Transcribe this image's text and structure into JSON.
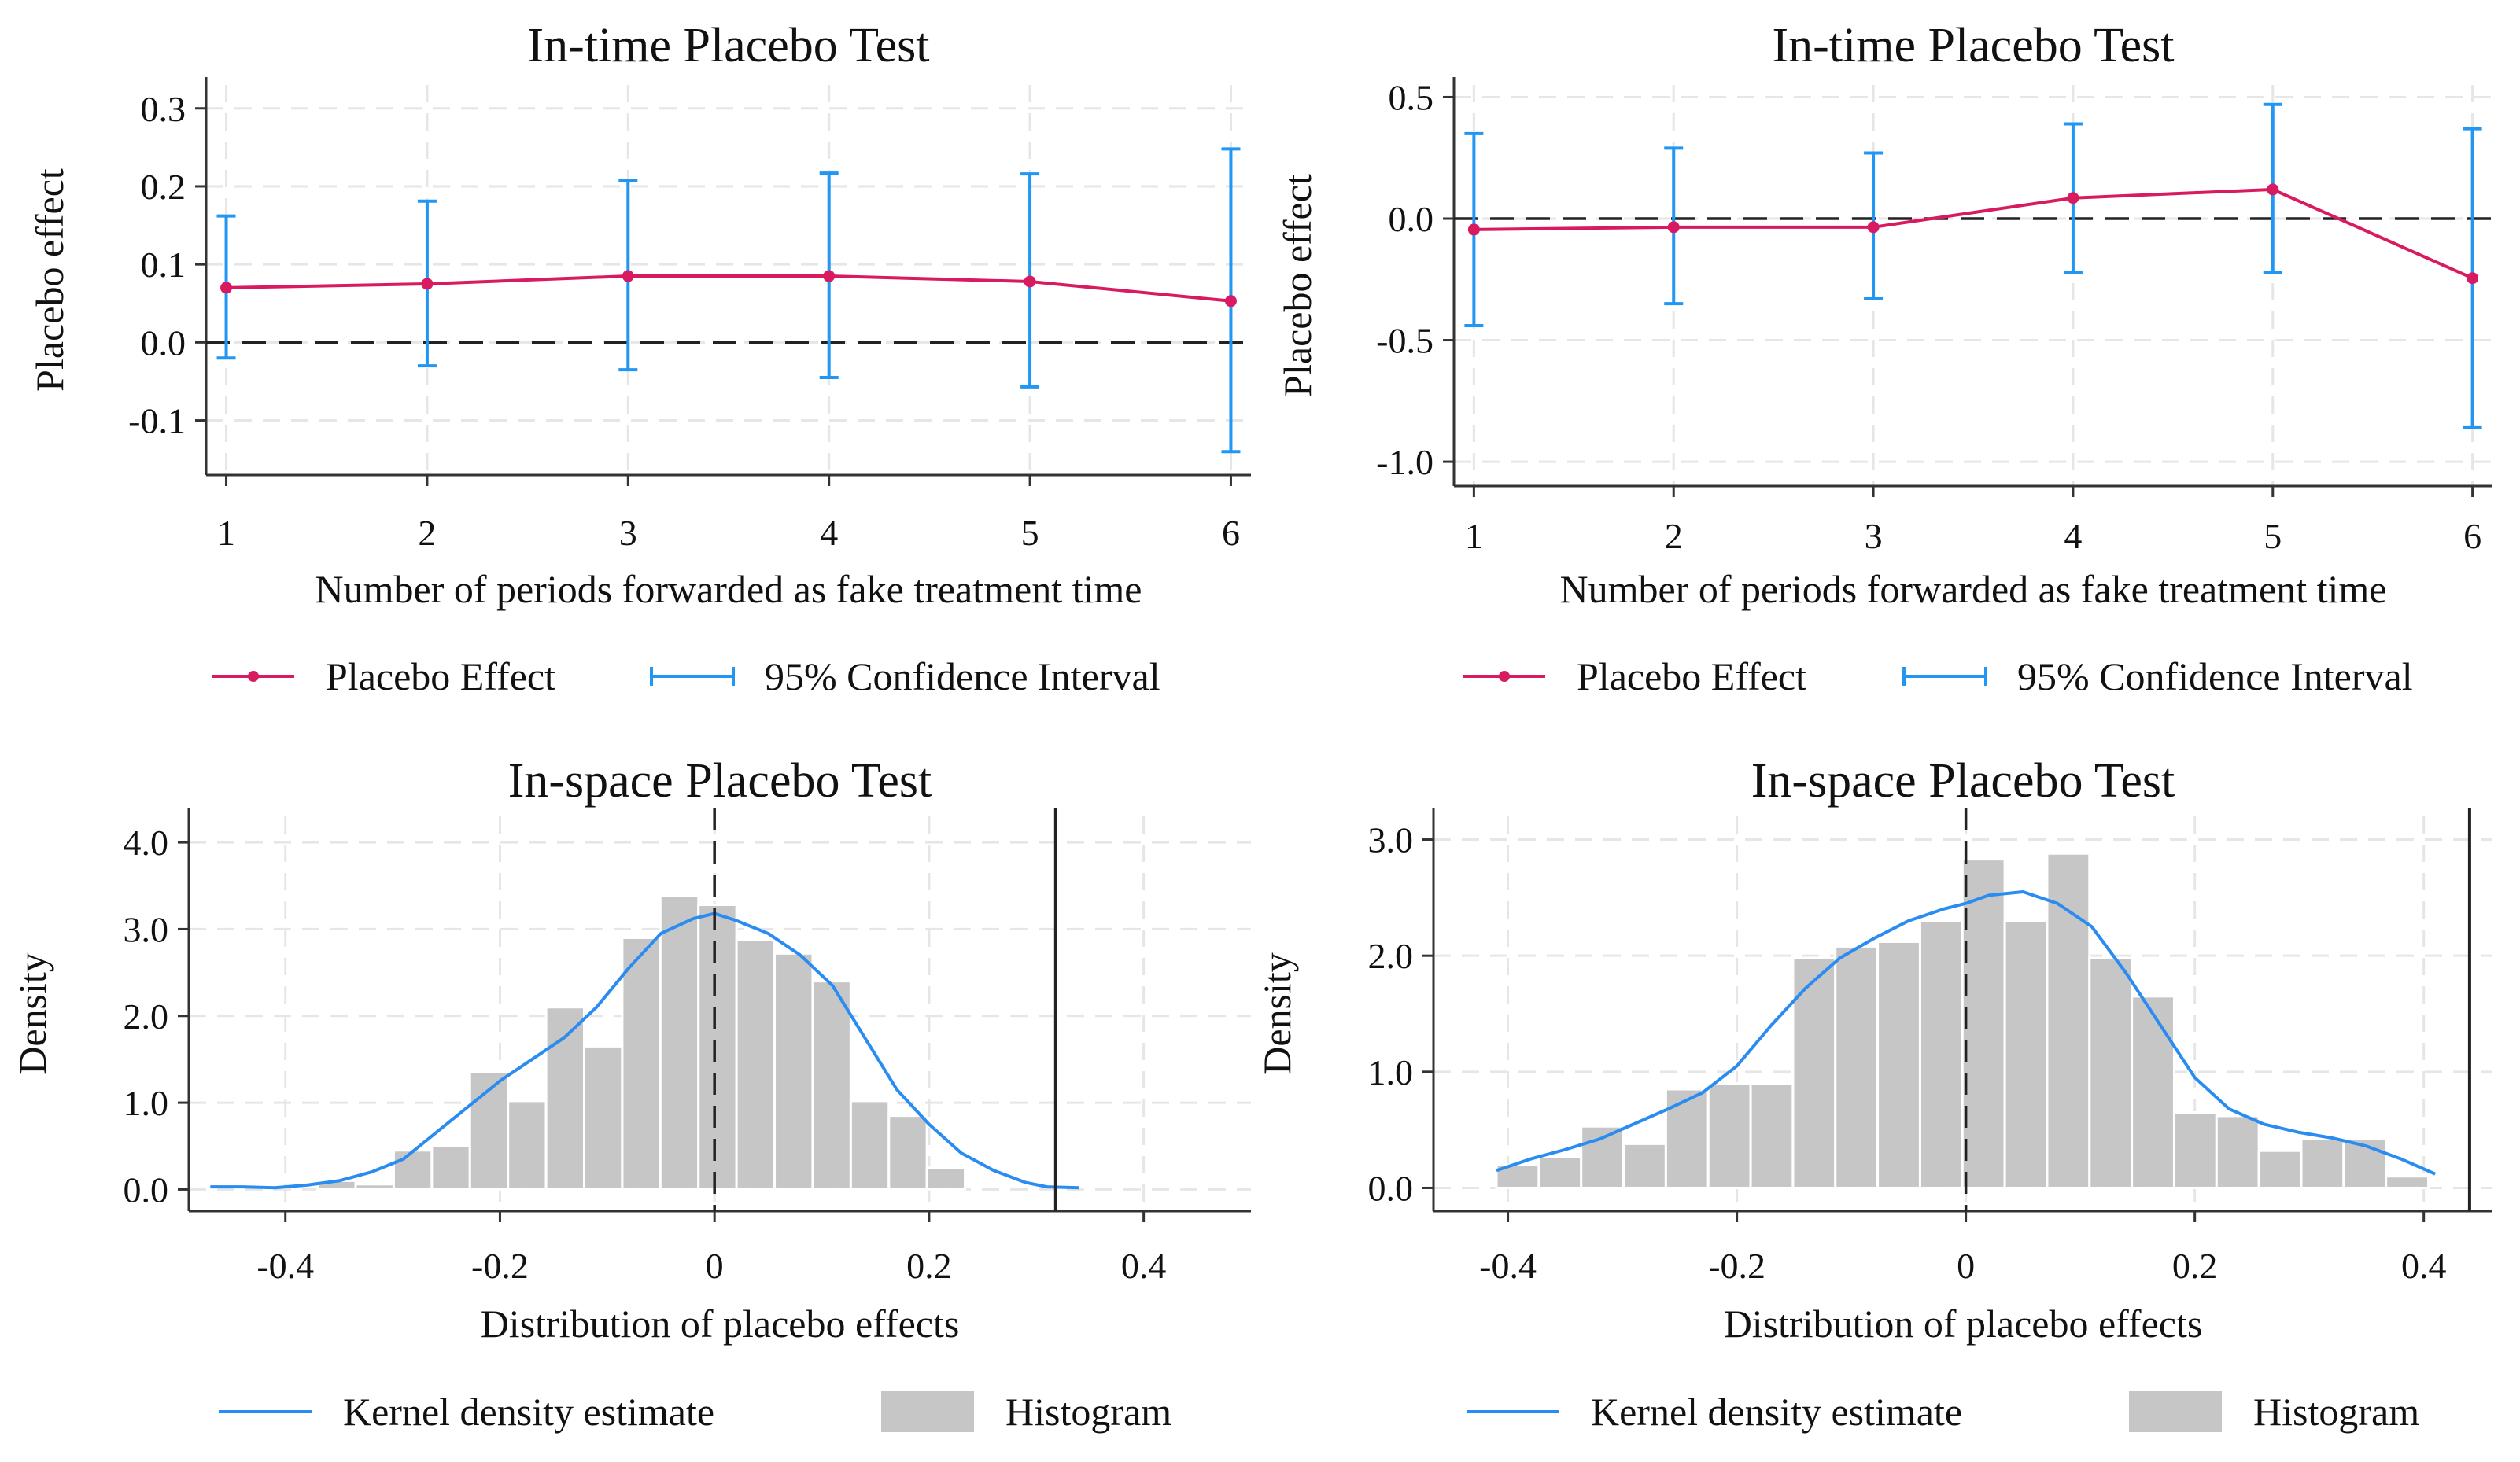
{
  "colors": {
    "effect_line": "#d81b60",
    "ci": "#2196f3",
    "kde": "#2a8cf0",
    "histogram": "#c6c6c6",
    "grid": "#e6e6e6",
    "axis": "#333333",
    "reference": "#222222"
  },
  "chart_data": [
    {
      "type": "line",
      "title": "In-time Placebo Test",
      "xlabel": "Number of periods forwarded as fake treatment time",
      "ylabel": "Placebo effect",
      "x": [
        1,
        2,
        3,
        4,
        5,
        6
      ],
      "xticks": [
        "1",
        "2",
        "3",
        "4",
        "5",
        "6"
      ],
      "yticks": [
        -0.1,
        0.0,
        0.1,
        0.2,
        0.3
      ],
      "ytick_labels": [
        "-0.1",
        "0.0",
        "0.1",
        "0.2",
        "0.3"
      ],
      "xlim": [
        0.9,
        6.1
      ],
      "ylim": [
        -0.17,
        0.33
      ],
      "series": [
        {
          "name": "Placebo Effect",
          "values": [
            0.07,
            0.075,
            0.085,
            0.085,
            0.078,
            0.053
          ]
        },
        {
          "name": "95% Confidence Interval",
          "lower": [
            -0.02,
            -0.03,
            -0.035,
            -0.045,
            -0.057,
            -0.14
          ],
          "upper": [
            0.162,
            0.181,
            0.208,
            0.217,
            0.216,
            0.248
          ]
        }
      ],
      "reference_y": 0,
      "legend": [
        {
          "label": "Placebo Effect"
        },
        {
          "label": "95% Confidence Interval"
        }
      ],
      "legend_position": "bottom"
    },
    {
      "type": "line",
      "title": "In-time Placebo Test",
      "xlabel": "Number of periods forwarded as fake treatment time",
      "ylabel": "Placebo effect",
      "x": [
        1,
        2,
        3,
        4,
        5,
        6
      ],
      "xticks": [
        "1",
        "2",
        "3",
        "4",
        "5",
        "6"
      ],
      "yticks": [
        -1.0,
        -0.5,
        0.0,
        0.5
      ],
      "ytick_labels": [
        "-1.0",
        "-0.5",
        "0.0",
        "0.5"
      ],
      "xlim": [
        0.9,
        6.1
      ],
      "ylim": [
        -1.1,
        0.55
      ],
      "series": [
        {
          "name": "Placebo Effect",
          "values": [
            -0.045,
            -0.035,
            -0.035,
            0.085,
            0.12,
            -0.245
          ]
        },
        {
          "name": "95% Confidence Interval",
          "lower": [
            -0.44,
            -0.35,
            -0.33,
            -0.22,
            -0.22,
            -0.86
          ],
          "upper": [
            0.35,
            0.29,
            0.27,
            0.39,
            0.47,
            0.37
          ]
        }
      ],
      "reference_y": 0,
      "legend": [
        {
          "label": "Placebo Effect"
        },
        {
          "label": "95% Confidence Interval"
        }
      ],
      "legend_position": "bottom"
    },
    {
      "type": "bar",
      "title": "In-space Placebo Test",
      "xlabel": "Distribution of placebo effects",
      "ylabel": "Density",
      "xticks": [
        -0.4,
        -0.2,
        0,
        0.2,
        0.4
      ],
      "xtick_labels": [
        "-0.4",
        "-0.2",
        "0",
        "0.2",
        "0.4"
      ],
      "yticks": [
        0,
        1,
        2,
        3,
        4
      ],
      "ytick_labels": [
        "0.0",
        "1.0",
        "2.0",
        "3.0",
        "4.0"
      ],
      "xlim": [
        -0.49,
        0.5
      ],
      "ylim": [
        -0.25,
        4.3
      ],
      "histogram": {
        "bin_start": -0.37,
        "bin_width": 0.0355,
        "values": [
          0.1,
          0.06,
          0.45,
          0.5,
          1.35,
          1.02,
          2.1,
          1.65,
          2.9,
          3.38,
          3.28,
          2.88,
          2.72,
          2.4,
          1.02,
          0.85,
          0.25
        ]
      },
      "kde": {
        "x": [
          -0.47,
          -0.44,
          -0.41,
          -0.38,
          -0.35,
          -0.32,
          -0.29,
          -0.26,
          -0.23,
          -0.2,
          -0.17,
          -0.14,
          -0.11,
          -0.08,
          -0.05,
          -0.02,
          0.0,
          0.02,
          0.05,
          0.08,
          0.11,
          0.14,
          0.17,
          0.2,
          0.23,
          0.26,
          0.29,
          0.31,
          0.34
        ],
        "y": [
          0.03,
          0.03,
          0.02,
          0.05,
          0.1,
          0.2,
          0.35,
          0.65,
          0.95,
          1.25,
          1.5,
          1.75,
          2.1,
          2.55,
          2.95,
          3.12,
          3.18,
          3.1,
          2.95,
          2.7,
          2.35,
          1.75,
          1.15,
          0.75,
          0.42,
          0.22,
          0.08,
          0.03,
          0.02
        ]
      },
      "reference_x": [
        0,
        0.318
      ],
      "legend": [
        {
          "label": "Kernel density estimate"
        },
        {
          "label": "Histogram"
        }
      ],
      "legend_position": "bottom"
    },
    {
      "type": "bar",
      "title": "In-space Placebo Test",
      "xlabel": "Distribution of placebo effects",
      "ylabel": "Density",
      "xticks": [
        -0.4,
        -0.2,
        0,
        0.2,
        0.4
      ],
      "xtick_labels": [
        "-0.4",
        "-0.2",
        "0",
        "0.2",
        "0.4"
      ],
      "yticks": [
        0,
        1,
        2,
        3
      ],
      "ytick_labels": [
        "0.0",
        "1.0",
        "2.0",
        "3.0"
      ],
      "xlim": [
        -0.465,
        0.46
      ],
      "ylim": [
        -0.2,
        3.2
      ],
      "histogram": {
        "bin_start": -0.41,
        "bin_width": 0.037,
        "values": [
          0.2,
          0.27,
          0.53,
          0.38,
          0.85,
          0.9,
          0.9,
          1.98,
          2.08,
          2.12,
          2.3,
          2.83,
          2.3,
          2.88,
          1.98,
          1.65,
          0.65,
          0.62,
          0.32,
          0.42,
          0.42,
          0.1
        ]
      },
      "kde": {
        "x": [
          -0.41,
          -0.38,
          -0.35,
          -0.32,
          -0.29,
          -0.26,
          -0.23,
          -0.2,
          -0.17,
          -0.14,
          -0.11,
          -0.08,
          -0.05,
          -0.02,
          0.0,
          0.02,
          0.05,
          0.08,
          0.11,
          0.14,
          0.17,
          0.2,
          0.23,
          0.26,
          0.29,
          0.32,
          0.35,
          0.38,
          0.41
        ],
        "y": [
          0.15,
          0.25,
          0.33,
          0.42,
          0.55,
          0.68,
          0.82,
          1.05,
          1.4,
          1.72,
          1.98,
          2.15,
          2.3,
          2.4,
          2.45,
          2.52,
          2.55,
          2.45,
          2.25,
          1.85,
          1.4,
          0.95,
          0.68,
          0.55,
          0.48,
          0.43,
          0.36,
          0.25,
          0.12
        ]
      },
      "reference_x": [
        0,
        0.44
      ],
      "legend": [
        {
          "label": "Kernel density estimate"
        },
        {
          "label": "Histogram"
        }
      ],
      "legend_position": "bottom"
    }
  ]
}
